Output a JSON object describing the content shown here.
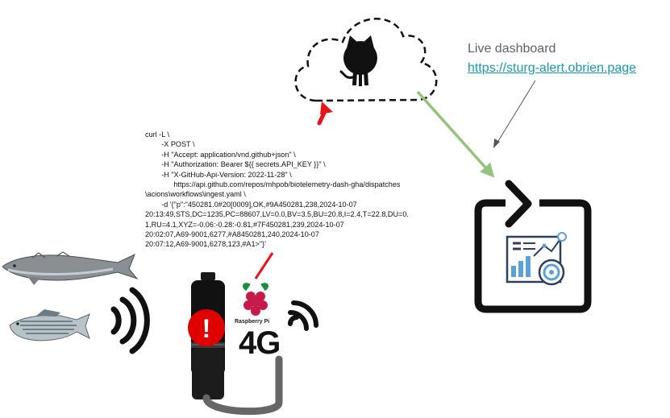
{
  "dashboard": {
    "title": "Live dashboard",
    "url": "https://sturg-alert.obrien.page"
  },
  "curl_lines": [
    "curl -L \\",
    "        -X POST \\",
    "        -H \"Accept: application/vnd.github+json\" \\",
    "        -H \"Authorization: Bearer ${{ secrets.API_KEY }}\" \\",
    "        -H \"X-GitHub-Api-Version: 2022-11-28\" \\",
    "              https://api.github.com/repos/mhpob/biotelemetry-dash-gha/dispatches",
    "\\acions\\workflows\\ingest.yaml \\",
    "        -d '{\"p\":\"450281.0#20[0009],OK,#9A450281,238,2024-10-07",
    "20:13:49,STS,DC=1235,PC=88607,LV=0.0,BV=3.5,BU=20.8,I=2.4,T=22.8,DU=0.",
    "1,RU=4.1,XYZ=-0.06:-0.28:-0.81,#7F450281,239,2024-10-07",
    "20:02:07,A69-9001,6277,#A8450281,240,2024-10-07",
    "20:07:12,A69-9001,6278,123,#A1>\"}'"
  ],
  "device": {
    "rpi_label": "Raspberry Pi",
    "network_label": "4G",
    "alert_symbol": "!"
  },
  "icons": {
    "cloud": "cloud-icon",
    "github": "github-octocat-icon",
    "sturgeon": "sturgeon-fish-icon",
    "striped_bass": "striped-bass-fish-icon",
    "acoustic": "acoustic-signal-icon",
    "receiver": "acoustic-receiver-icon",
    "alert": "alert-badge-icon",
    "raspberry": "raspberry-pi-icon",
    "wifi": "wireless-signal-icon",
    "dashboard": "dashboard-refresh-icon"
  },
  "colors": {
    "green_arrow": "#93c47d",
    "red_arrow": "#e8141b",
    "link": "#1a9aa8",
    "alert": "#e00000",
    "cable": "#666666"
  }
}
